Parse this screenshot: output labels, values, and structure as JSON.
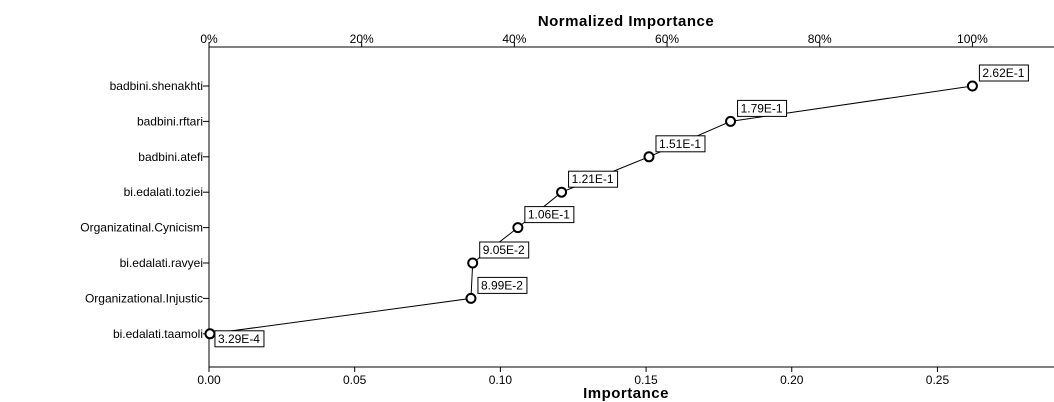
{
  "chart_data": {
    "type": "line",
    "title": "",
    "top_axis": {
      "title": "Normalized Importance",
      "ticks": [
        "0%",
        "20%",
        "40%",
        "60%",
        "80%",
        "100%"
      ]
    },
    "bottom_axis": {
      "title": "Importance",
      "ticks": [
        "0.00",
        "0.05",
        "0.10",
        "0.15",
        "0.20",
        "0.25"
      ],
      "xlim": [
        0,
        0.29
      ]
    },
    "categories": [
      "badbini.shenakhti",
      "badbini.rftari",
      "badbini.atefi",
      "bi.edalati.toziei",
      "Organizatinal.Cynicism",
      "bi.edalati.ravyei",
      "Organizational.Injustic",
      "bi.edalati.taamoli"
    ],
    "values": [
      0.262,
      0.179,
      0.151,
      0.121,
      0.106,
      0.0905,
      0.0899,
      0.000329
    ],
    "data_labels": [
      "2.62E-1",
      "1.79E-1",
      "1.51E-1",
      "1.21E-1",
      "1.06E-1",
      "9.05E-2",
      "8.99E-2",
      "3.29E-4"
    ],
    "marker": "circle",
    "line_color": "#000000",
    "grid": false
  }
}
